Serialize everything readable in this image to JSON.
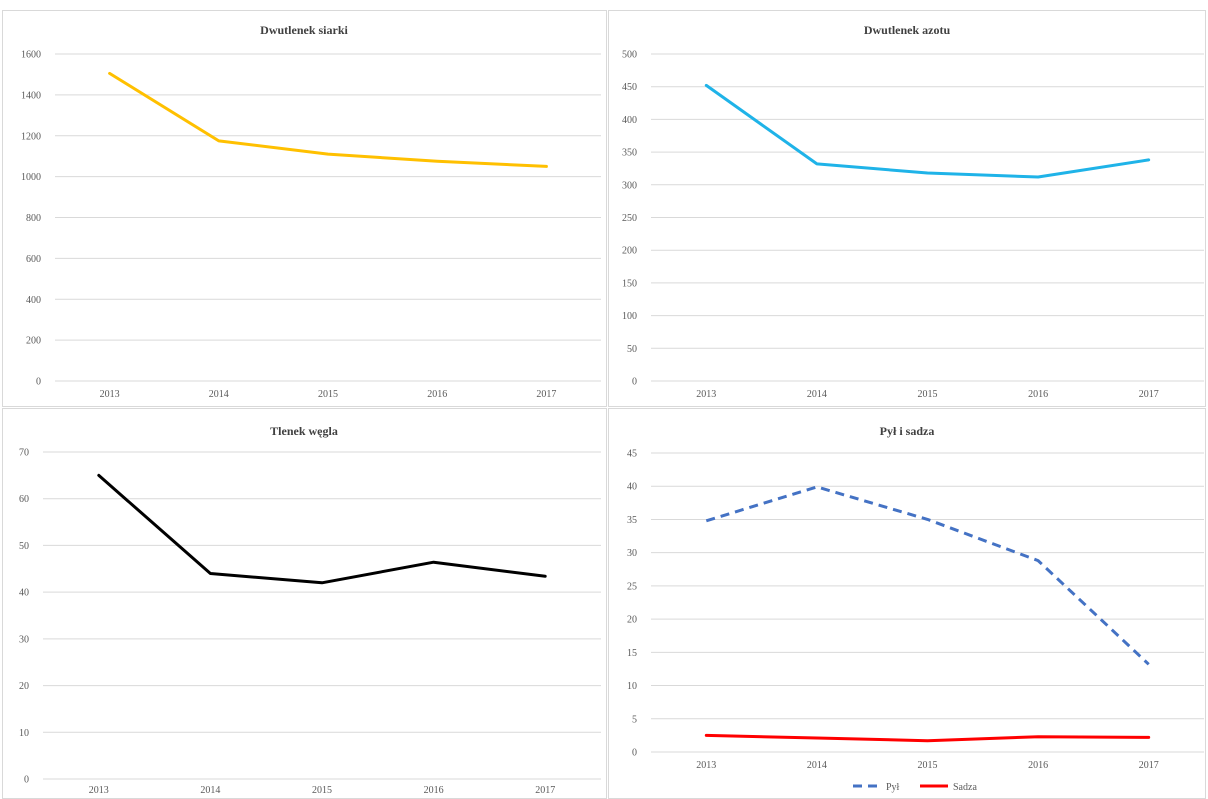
{
  "chart_data": [
    {
      "type": "line",
      "title": "Dwutlenek siarki",
      "categories": [
        "2013",
        "2014",
        "2015",
        "2016",
        "2017"
      ],
      "series": [
        {
          "values": [
            1505,
            1175,
            1110,
            1075,
            1050
          ],
          "color": "#FFC000",
          "dash": "solid"
        }
      ],
      "ylim": [
        0,
        1600
      ],
      "yticks": [
        0,
        200,
        400,
        600,
        800,
        1000,
        1200,
        1400,
        1600
      ],
      "grid": true,
      "legend": "none"
    },
    {
      "type": "line",
      "title": "Dwutlenek azotu",
      "categories": [
        "2013",
        "2014",
        "2015",
        "2016",
        "2017"
      ],
      "series": [
        {
          "values": [
            452,
            332,
            318,
            312,
            338
          ],
          "color": "#1FB3E8",
          "dash": "solid"
        }
      ],
      "ylim": [
        0,
        500
      ],
      "yticks": [
        0,
        50,
        100,
        150,
        200,
        250,
        300,
        350,
        400,
        450,
        500
      ],
      "grid": true,
      "legend": "none"
    },
    {
      "type": "line",
      "title": "Tlenek węgla",
      "categories": [
        "2013",
        "2014",
        "2015",
        "2016",
        "2017"
      ],
      "series": [
        {
          "values": [
            65,
            44,
            42,
            46.4,
            43.4
          ],
          "color": "#000000",
          "dash": "solid"
        }
      ],
      "ylim": [
        0,
        70
      ],
      "yticks": [
        0,
        10,
        20,
        30,
        40,
        50,
        60,
        70
      ],
      "grid": true,
      "legend": "none"
    },
    {
      "type": "line",
      "title": "Pył i sadza",
      "categories": [
        "2013",
        "2014",
        "2015",
        "2016",
        "2017"
      ],
      "series": [
        {
          "name": "Pył",
          "values": [
            34.8,
            39.9,
            35,
            28.8,
            13.2
          ],
          "color": "#4472C4",
          "dash": "dashed"
        },
        {
          "name": "Sadza",
          "values": [
            2.5,
            2.1,
            1.7,
            2.3,
            2.2
          ],
          "color": "#FF0000",
          "dash": "solid"
        }
      ],
      "ylim": [
        0,
        45
      ],
      "yticks": [
        0,
        5,
        10,
        15,
        20,
        25,
        30,
        35,
        40,
        45
      ],
      "grid": true,
      "legend": "bottom"
    }
  ]
}
